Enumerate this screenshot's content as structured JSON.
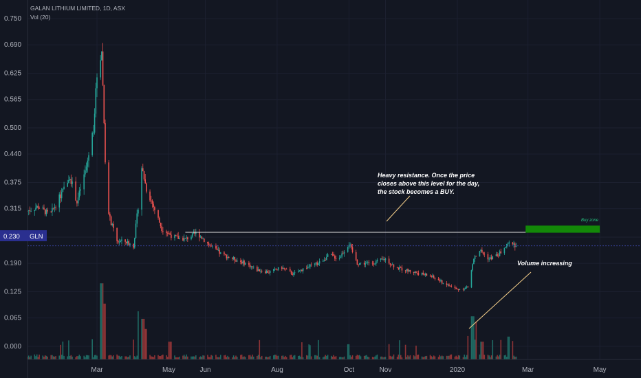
{
  "header": {
    "symbol_line": "GALAN LITHIUM LIMITED, 1D, ASX",
    "indicator_line": "Vol (20)"
  },
  "price_tag": {
    "value": "0.230",
    "ticker": "GLN"
  },
  "annotations": {
    "resistance_note": [
      "Heavy resistance. Once the price",
      "closes above this level for the day,",
      "the stock becomes a BUY."
    ],
    "volume_note": "Volume increasing",
    "buy_zone_label": "Buy zone"
  },
  "colors": {
    "background": "#131722",
    "up": "#26a69a",
    "down": "#ef5350",
    "vol_up": "#1f6b64",
    "vol_down": "#8e3436",
    "axis_text": "#b2b5be",
    "price_tag": "#2a2f8f",
    "buy_zone": "#138808",
    "annotation_line": "#f5cf8a",
    "resistance_line": "#e0e0e0"
  },
  "chart_data": {
    "type": "candlestick",
    "title": "GALAN LITHIUM LIMITED, 1D, ASX",
    "ylim": [
      -0.03,
      0.78
    ],
    "ytick_values": [
      0.75,
      0.69,
      0.625,
      0.565,
      0.5,
      0.44,
      0.375,
      0.315,
      0.25,
      0.19,
      0.125,
      0.065,
      0.0
    ],
    "ytick_labels": [
      "0.750",
      "0.690",
      "0.625",
      "0.565",
      "0.500",
      "0.440",
      "0.375",
      "0.315",
      "0.250",
      "0.190",
      "0.125",
      "0.065",
      "0.000"
    ],
    "xtick_labels": [
      "Mar",
      "May",
      "Jun",
      "Aug",
      "Oct",
      "Nov",
      "2020",
      "Mar",
      "May"
    ],
    "xtick_dates": [
      "2019-03-01",
      "2019-05-01",
      "2019-06-01",
      "2019-08-01",
      "2019-10-01",
      "2019-11-01",
      "2020-01-01",
      "2020-03-01",
      "2020-05-01"
    ],
    "x_range": [
      "2019-01-01",
      "2020-06-05"
    ],
    "last_price": 0.23,
    "resistance": {
      "price": 0.261,
      "from": "2019-05-15",
      "to": "2020-05-01"
    },
    "buy_zone": {
      "price_low": 0.26,
      "price_high": 0.27,
      "from": "2020-02-28",
      "to": "2020-05-01"
    },
    "price_anchors": [
      [
        "2019-01-01",
        0.31
      ],
      [
        "2019-01-10",
        0.32
      ],
      [
        "2019-01-20",
        0.3
      ],
      [
        "2019-02-01",
        0.36
      ],
      [
        "2019-02-06",
        0.39
      ],
      [
        "2019-02-12",
        0.33
      ],
      [
        "2019-02-20",
        0.41
      ],
      [
        "2019-02-26",
        0.5
      ],
      [
        "2019-03-01",
        0.62
      ],
      [
        "2019-03-05",
        0.68
      ],
      [
        "2019-03-08",
        0.43
      ],
      [
        "2019-03-11",
        0.3
      ],
      [
        "2019-03-18",
        0.24
      ],
      [
        "2019-03-25",
        0.24
      ],
      [
        "2019-04-01",
        0.23
      ],
      [
        "2019-04-05",
        0.32
      ],
      [
        "2019-04-08",
        0.41
      ],
      [
        "2019-04-12",
        0.36
      ],
      [
        "2019-04-18",
        0.32
      ],
      [
        "2019-04-25",
        0.27
      ],
      [
        "2019-05-05",
        0.25
      ],
      [
        "2019-05-15",
        0.245
      ],
      [
        "2019-05-25",
        0.26
      ],
      [
        "2019-06-05",
        0.23
      ],
      [
        "2019-06-15",
        0.21
      ],
      [
        "2019-06-25",
        0.2
      ],
      [
        "2019-07-05",
        0.19
      ],
      [
        "2019-07-15",
        0.175
      ],
      [
        "2019-07-25",
        0.17
      ],
      [
        "2019-08-05",
        0.18
      ],
      [
        "2019-08-15",
        0.165
      ],
      [
        "2019-08-25",
        0.18
      ],
      [
        "2019-09-05",
        0.19
      ],
      [
        "2019-09-15",
        0.21
      ],
      [
        "2019-09-22",
        0.2
      ],
      [
        "2019-10-01",
        0.235
      ],
      [
        "2019-10-08",
        0.19
      ],
      [
        "2019-10-20",
        0.19
      ],
      [
        "2019-11-01",
        0.2
      ],
      [
        "2019-11-10",
        0.18
      ],
      [
        "2019-11-25",
        0.17
      ],
      [
        "2019-12-10",
        0.16
      ],
      [
        "2019-12-20",
        0.145
      ],
      [
        "2020-01-01",
        0.13
      ],
      [
        "2020-01-10",
        0.135
      ],
      [
        "2020-01-15",
        0.2
      ],
      [
        "2020-01-20",
        0.22
      ],
      [
        "2020-01-28",
        0.2
      ],
      [
        "2020-02-05",
        0.21
      ],
      [
        "2020-02-12",
        0.23
      ],
      [
        "2020-02-16",
        0.24
      ],
      [
        "2020-02-20",
        0.23
      ]
    ],
    "volume_ylim": [
      0,
      0.155
    ],
    "volume_spikes": [
      [
        "2019-02-24",
        0.04
      ],
      [
        "2019-03-03",
        0.135
      ],
      [
        "2019-03-05",
        0.15
      ],
      [
        "2019-03-07",
        0.11
      ],
      [
        "2019-03-09",
        0.06
      ],
      [
        "2019-04-06",
        0.095
      ],
      [
        "2019-04-09",
        0.08
      ],
      [
        "2019-04-12",
        0.06
      ],
      [
        "2019-05-02",
        0.035
      ],
      [
        "2019-09-30",
        0.03
      ],
      [
        "2020-01-14",
        0.085
      ],
      [
        "2020-01-18",
        0.075
      ],
      [
        "2020-01-22",
        0.035
      ],
      [
        "2020-02-14",
        0.045
      ]
    ]
  }
}
